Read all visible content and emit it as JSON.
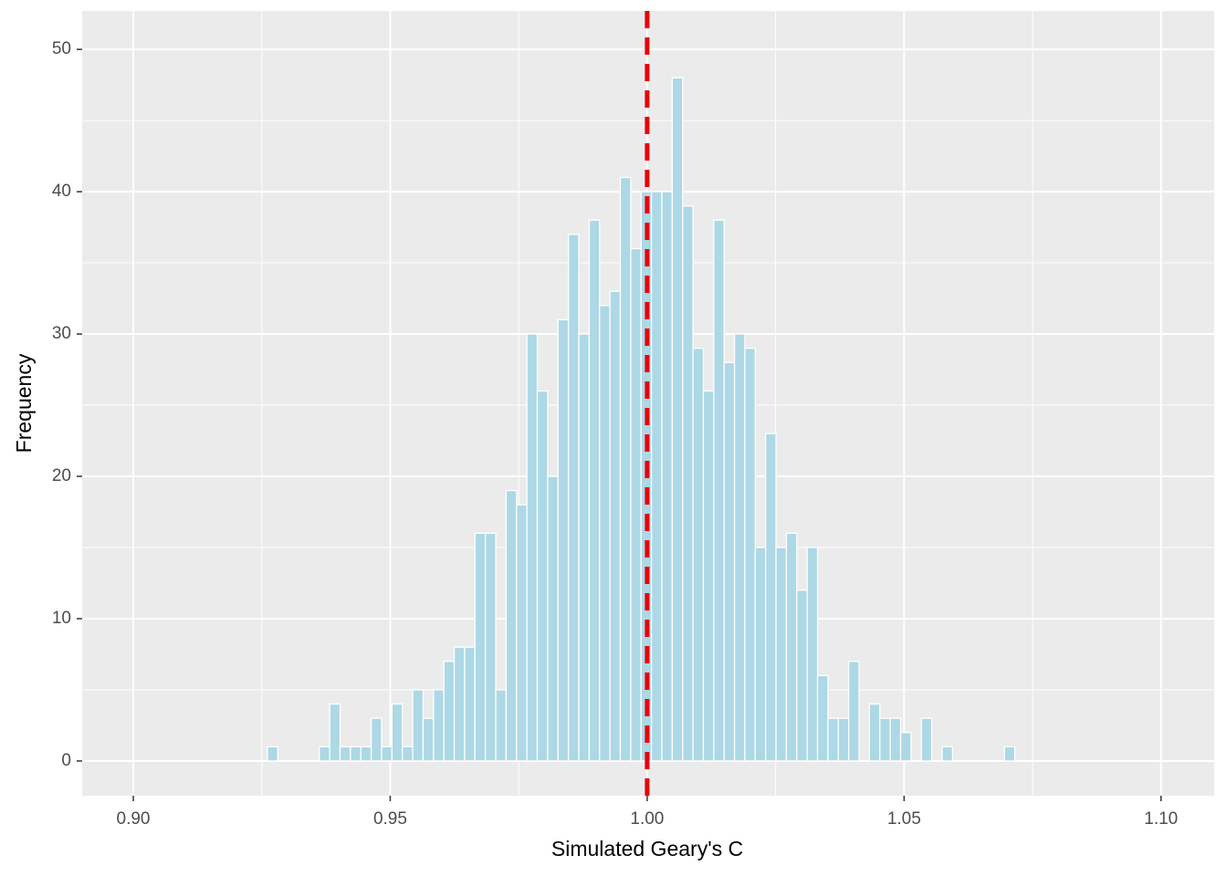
{
  "chart_data": {
    "type": "histogram",
    "x_label": "Simulated Geary's C",
    "y_label": "Frequency",
    "bins": [
      0.9261,
      0.92812,
      0.93014,
      0.93216,
      0.93418,
      0.9362,
      0.93822,
      0.94024,
      0.94226,
      0.94428,
      0.9463,
      0.94832,
      0.95034,
      0.95236,
      0.95438,
      0.9564,
      0.95842,
      0.96044,
      0.96246,
      0.96448,
      0.9665,
      0.96852,
      0.97054,
      0.97256,
      0.97458,
      0.9766,
      0.97862,
      0.98064,
      0.98266,
      0.98468,
      0.9867,
      0.98872,
      0.99074,
      0.99276,
      0.99478,
      0.9968,
      0.99882,
      1.00084,
      1.00286,
      1.00488,
      1.0069,
      1.00892,
      1.01094,
      1.01296,
      1.01498,
      1.017,
      1.01902,
      1.02104,
      1.02306,
      1.02508,
      1.0271,
      1.02912,
      1.03114,
      1.03316,
      1.03518,
      1.0372,
      1.03922,
      1.04124,
      1.04326,
      1.04528,
      1.0473,
      1.04932,
      1.05134,
      1.05336,
      1.05538,
      1.0574,
      1.05942,
      1.06144,
      1.06346,
      1.06548,
      1.0675,
      1.06952,
      1.07154
    ],
    "values": [
      1,
      0,
      0,
      0,
      0,
      1,
      4,
      1,
      1,
      1,
      3,
      1,
      4,
      1,
      5,
      3,
      5,
      7,
      8,
      8,
      16,
      16,
      5,
      19,
      18,
      30,
      26,
      20,
      31,
      37,
      30,
      38,
      32,
      33,
      41,
      36,
      40,
      40,
      40,
      48,
      39,
      29,
      26,
      38,
      28,
      30,
      29,
      15,
      23,
      15,
      16,
      12,
      15,
      6,
      3,
      3,
      7,
      0,
      4,
      3,
      3,
      2,
      0,
      3,
      0,
      1,
      0,
      0,
      0,
      0,
      0,
      1
    ],
    "color": "#add8e6",
    "edge_color": "#ffffff",
    "reference_line": {
      "value": 1,
      "color": "#e8000b"
    },
    "xlim": [
      0.89005,
      1.11035
    ],
    "xticks": [
      {
        "value": 0.9,
        "label": "0.90"
      },
      0.95,
      {
        "value": 1,
        "label": "1.00"
      },
      1.05,
      {
        "value": 1.1,
        "label": "1.10"
      }
    ],
    "xminorticks": [
      0.925,
      0.975,
      1.025,
      1.075
    ],
    "ylim": [
      -2.44,
      52.7
    ],
    "yticks": [
      0,
      10,
      20,
      30,
      40,
      50
    ],
    "yminorticks": [
      5,
      15,
      25,
      35,
      45
    ],
    "grid": true
  }
}
